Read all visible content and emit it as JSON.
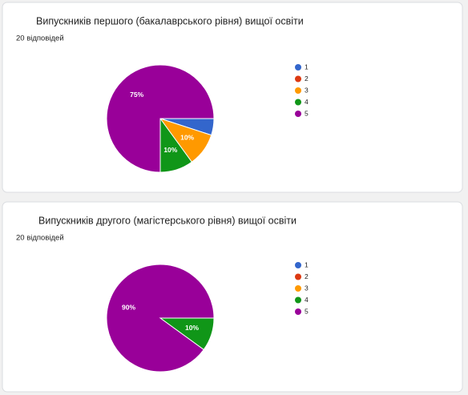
{
  "chart_data": [
    {
      "type": "pie",
      "title": "Випускників першого (бакалаврського рівня) вищої освіти",
      "subtitle": "20 відповідей",
      "categories": [
        "1",
        "2",
        "3",
        "4",
        "5"
      ],
      "values": [
        5,
        0,
        10,
        10,
        75
      ],
      "value_labels": [
        null,
        null,
        "10%",
        "10%",
        "75%"
      ],
      "colors": [
        "#3366cc",
        "#dc3912",
        "#ff9900",
        "#109618",
        "#990099"
      ]
    },
    {
      "type": "pie",
      "title": "Випускників другого (магістерського рівня) вищої освіти",
      "subtitle": "20 відповідей",
      "categories": [
        "1",
        "2",
        "3",
        "4",
        "5"
      ],
      "values": [
        0,
        0,
        0,
        10,
        90
      ],
      "value_labels": [
        null,
        null,
        null,
        "10%",
        "90%"
      ],
      "colors": [
        "#3366cc",
        "#dc3912",
        "#ff9900",
        "#109618",
        "#990099"
      ]
    }
  ]
}
